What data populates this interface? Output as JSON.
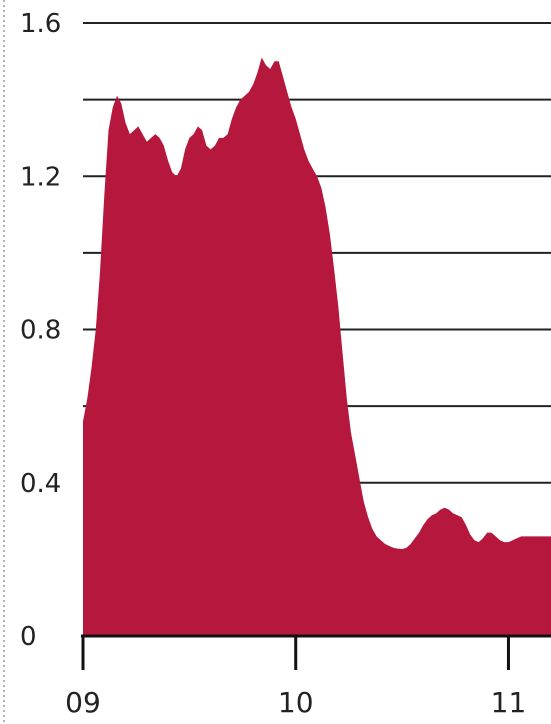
{
  "colors": {
    "area_fill": "#b5183c",
    "grid": "#222222",
    "axis": "#111111",
    "left_border": "#9a9a9a"
  },
  "chart_data": {
    "type": "area",
    "title": "",
    "xlabel": "",
    "ylabel": "",
    "grid": true,
    "xlim": [
      2009.0,
      2011.2
    ],
    "ylim": [
      0,
      1.6
    ],
    "y_ticks": [
      0,
      0.4,
      0.8,
      1.2,
      1.6
    ],
    "y_tick_labels": [
      "0",
      "0.4",
      "0.8",
      "1.2",
      "1.6"
    ],
    "y_gridlines": [
      0.2,
      0.4,
      0.6,
      0.8,
      1.0,
      1.2,
      1.4,
      1.6
    ],
    "x_ticks": [
      2009,
      2010,
      2011
    ],
    "x_tick_labels": [
      "09",
      "10",
      "11"
    ],
    "series": [
      {
        "x": [
          2009.0,
          2009.02,
          2009.04,
          2009.06,
          2009.08,
          2009.1,
          2009.12,
          2009.14,
          2009.16,
          2009.18,
          2009.2,
          2009.22,
          2009.24,
          2009.26,
          2009.28,
          2009.3,
          2009.32,
          2009.34,
          2009.36,
          2009.38,
          2009.4,
          2009.42,
          2009.44,
          2009.46,
          2009.48,
          2009.5,
          2009.52,
          2009.54,
          2009.56,
          2009.58,
          2009.6,
          2009.62,
          2009.64,
          2009.66,
          2009.68,
          2009.7,
          2009.72,
          2009.74,
          2009.76,
          2009.78,
          2009.8,
          2009.82,
          2009.84,
          2009.86,
          2009.88,
          2009.9,
          2009.92,
          2009.94,
          2009.96,
          2009.98,
          2010.0,
          2010.02,
          2010.04,
          2010.06,
          2010.08,
          2010.1,
          2010.12,
          2010.14,
          2010.16,
          2010.18,
          2010.2,
          2010.22,
          2010.24,
          2010.26,
          2010.28,
          2010.3,
          2010.32,
          2010.34,
          2010.36,
          2010.38,
          2010.4,
          2010.42,
          2010.44,
          2010.46,
          2010.48,
          2010.5,
          2010.52,
          2010.54,
          2010.56,
          2010.58,
          2010.6,
          2010.62,
          2010.64,
          2010.66,
          2010.68,
          2010.7,
          2010.72,
          2010.74,
          2010.76,
          2010.78,
          2010.8,
          2010.82,
          2010.84,
          2010.86,
          2010.88,
          2010.9,
          2010.92,
          2010.94,
          2010.96,
          2010.98,
          2011.0,
          2011.02,
          2011.04,
          2011.06,
          2011.08,
          2011.1,
          2011.12,
          2011.14,
          2011.16,
          2011.18,
          2011.2
        ],
        "values": [
          0.56,
          0.62,
          0.7,
          0.8,
          0.95,
          1.15,
          1.32,
          1.38,
          1.41,
          1.39,
          1.34,
          1.31,
          1.32,
          1.33,
          1.31,
          1.29,
          1.3,
          1.31,
          1.3,
          1.28,
          1.24,
          1.21,
          1.2,
          1.22,
          1.27,
          1.3,
          1.31,
          1.33,
          1.32,
          1.28,
          1.27,
          1.28,
          1.3,
          1.3,
          1.31,
          1.35,
          1.38,
          1.4,
          1.41,
          1.42,
          1.44,
          1.47,
          1.51,
          1.49,
          1.48,
          1.5,
          1.5,
          1.46,
          1.42,
          1.38,
          1.35,
          1.31,
          1.27,
          1.24,
          1.22,
          1.2,
          1.17,
          1.12,
          1.05,
          0.96,
          0.86,
          0.74,
          0.62,
          0.53,
          0.47,
          0.41,
          0.35,
          0.31,
          0.28,
          0.26,
          0.25,
          0.24,
          0.235,
          0.23,
          0.228,
          0.227,
          0.23,
          0.24,
          0.255,
          0.27,
          0.29,
          0.305,
          0.315,
          0.32,
          0.33,
          0.335,
          0.33,
          0.32,
          0.315,
          0.31,
          0.29,
          0.265,
          0.25,
          0.245,
          0.255,
          0.27,
          0.27,
          0.26,
          0.25,
          0.245,
          0.245,
          0.25,
          0.255,
          0.26,
          0.26,
          0.26,
          0.26,
          0.26,
          0.26,
          0.26,
          0.26
        ]
      }
    ]
  }
}
